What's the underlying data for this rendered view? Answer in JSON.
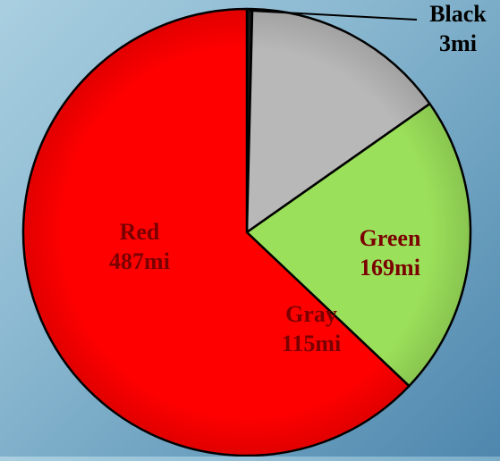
{
  "chart_data": {
    "type": "pie",
    "title": "",
    "unit": "mi",
    "slices": [
      {
        "name": "Black",
        "value": 3,
        "label": "3mi",
        "color": "#1a1a1a"
      },
      {
        "name": "Gray",
        "value": 115,
        "label": "115mi",
        "color": "#b8b8b8"
      },
      {
        "name": "Green",
        "value": 169,
        "label": "169mi",
        "color": "#9be05a"
      },
      {
        "name": "Red",
        "value": 487,
        "label": "487mi",
        "color": "#ff0000"
      }
    ],
    "start_angle": "12 o'clock",
    "direction": "clockwise",
    "legend": "none",
    "label_color": "#7a0000"
  }
}
